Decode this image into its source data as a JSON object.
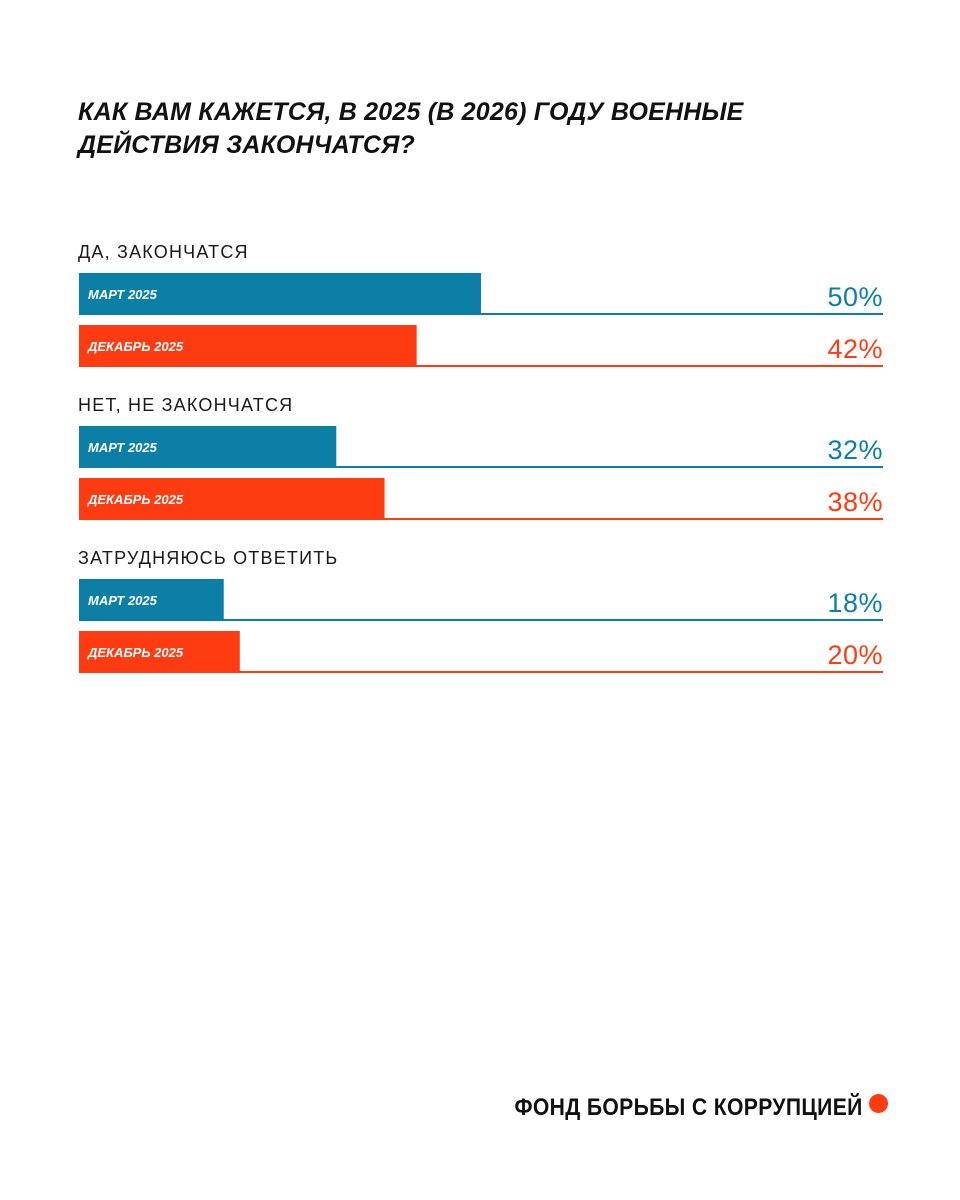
{
  "colors": {
    "march": "#0b7fa6",
    "december": "#ff3b12",
    "text": "#111111",
    "background": "#ffffff"
  },
  "chart_data": {
    "type": "bar",
    "orientation": "horizontal",
    "title": "КАК ВАМ КАЖЕТСЯ, В 2025 (В 2026) ГОДУ ВОЕННЫЕ ДЕЙСТВИЯ ЗАКОНЧАТСЯ?",
    "categories": [
      "ДА, ЗАКОНЧАТСЯ",
      "НЕТ, НЕ ЗАКОНЧАТСЯ",
      "ЗАТРУДНЯЮСЬ ОТВЕТИТЬ"
    ],
    "series": [
      {
        "name": "МАРТ 2025",
        "color": "#0b7fa6",
        "values": [
          50,
          32,
          18
        ],
        "labels": [
          "50%",
          "32%",
          "18%"
        ]
      },
      {
        "name": "ДЕКАБРЬ 2025",
        "color": "#ff3b12",
        "values": [
          42,
          38,
          20
        ],
        "labels": [
          "42%",
          "38%",
          "20%"
        ]
      }
    ],
    "xlim": [
      0,
      100
    ],
    "unit": "%",
    "grid": false,
    "legend": "none"
  },
  "footer": {
    "org_name": "ФОНД БОРЬБЫ С КОРРУПЦИЕЙ",
    "dot_color": "#ff3b12"
  }
}
